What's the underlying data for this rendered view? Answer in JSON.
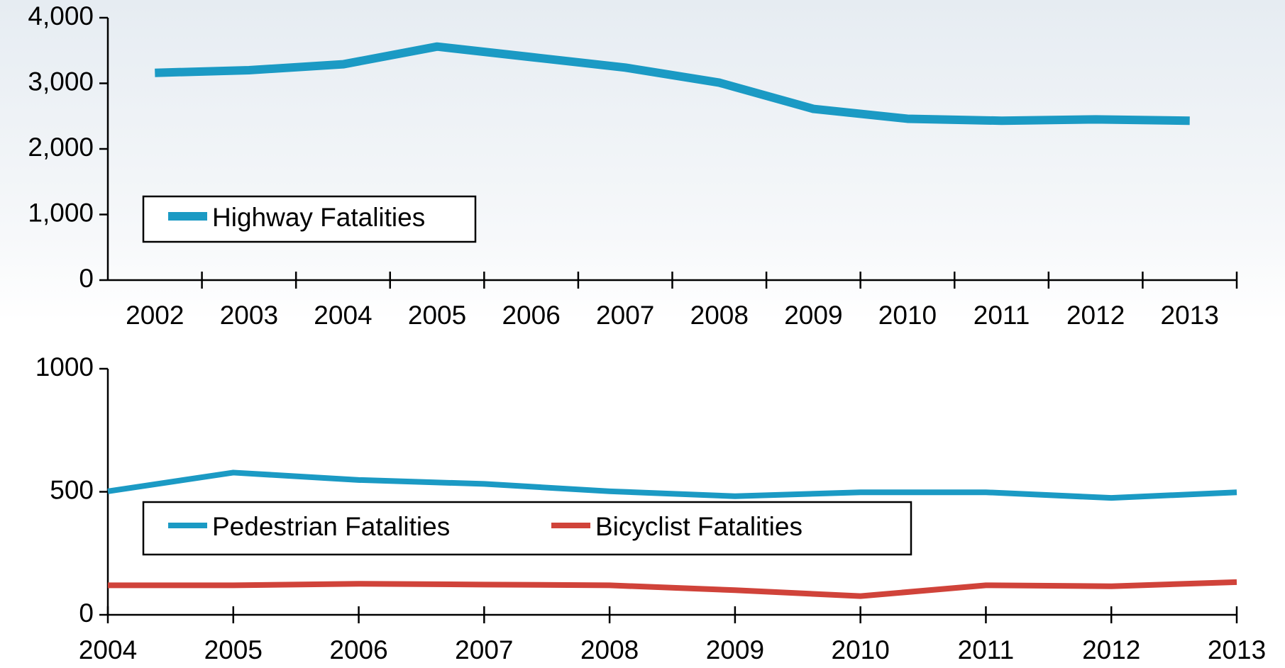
{
  "chart_data": [
    {
      "type": "line",
      "categories": [
        "2002",
        "2003",
        "2004",
        "2005",
        "2006",
        "2007",
        "2008",
        "2009",
        "2010",
        "2011",
        "2012",
        "2013"
      ],
      "series": [
        {
          "name": "Highway Fatalities",
          "color": "#1b9ac4",
          "values": [
            3160,
            3200,
            3290,
            3560,
            3400,
            3240,
            3010,
            2610,
            2460,
            2430,
            2450,
            2430
          ]
        }
      ],
      "ylim": [
        0,
        4000
      ],
      "yticks": [
        0,
        {
          "value": 1000,
          "label": "1,000"
        },
        {
          "value": 2000,
          "label": "2,000"
        },
        {
          "value": 3000,
          "label": "3,000"
        },
        {
          "value": 4000,
          "label": "4,000"
        }
      ],
      "legend": "lower left"
    },
    {
      "type": "line",
      "x": [
        2004,
        2005,
        2006,
        2007,
        2008,
        2009,
        2010,
        2011,
        2012,
        2013
      ],
      "xlim": [
        2004,
        2013
      ],
      "xticks": [
        2004,
        2005,
        2006,
        2007,
        2008,
        2009,
        2010,
        2011,
        2012,
        2013
      ],
      "series": [
        {
          "name": "Pedestrian Fatalities",
          "color": "#1b9ac4",
          "values": [
            502,
            578,
            548,
            532,
            502,
            482,
            498,
            498,
            475,
            498
          ]
        },
        {
          "name": "Bicyclist Fatalities",
          "color": "#d0433a",
          "values": [
            120,
            120,
            126,
            123,
            120,
            100,
            76,
            120,
            116,
            133
          ]
        }
      ],
      "ylim": [
        0,
        1000
      ],
      "yticks": [
        0,
        500,
        1000
      ],
      "legend": "lower left"
    }
  ]
}
